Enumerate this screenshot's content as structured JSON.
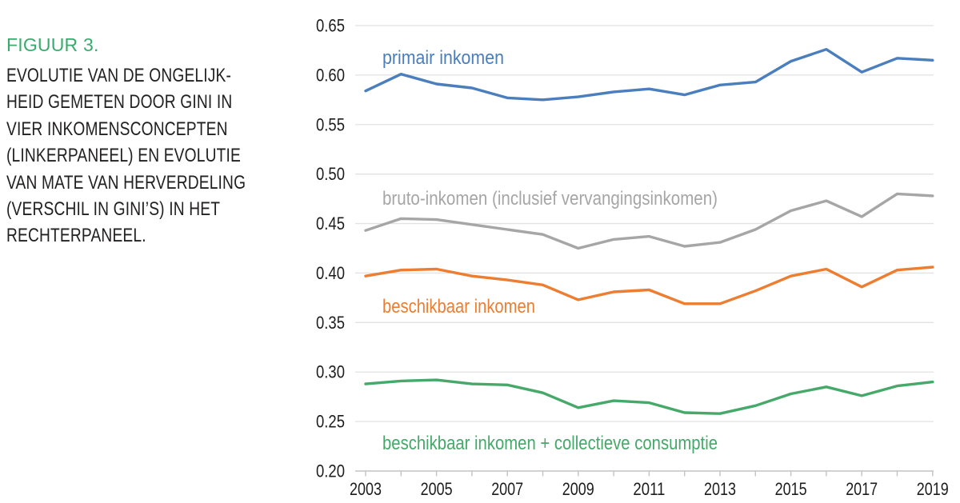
{
  "figure": {
    "label": "FIGUUR 3.",
    "label_color": "#3bab6d",
    "title": "EVOLUTIE VAN DE ONGELIJK-\nHEID GEMETEN DOOR GINI IN\nVIER INKOMENSCONCEPTEN\n(LINKERPANEEL) EN EVOLUTIE\nVAN MATE VAN HERVERDELING\n(VERSCHIL IN GINI’S) IN HET\nRECHTERPANEEL."
  },
  "chart_data": {
    "type": "line",
    "x": [
      2003,
      2004,
      2005,
      2006,
      2007,
      2008,
      2009,
      2010,
      2011,
      2012,
      2013,
      2014,
      2015,
      2016,
      2017,
      2018,
      2019
    ],
    "x_tick_labels": [
      "2003",
      "2005",
      "2007",
      "2009",
      "2011",
      "2013",
      "2015",
      "2017",
      "2019"
    ],
    "ylim": [
      0.2,
      0.65
    ],
    "ytick_step": 0.05,
    "ytick_labels": [
      "0.65",
      "0.60",
      "0.55",
      "0.50",
      "0.45",
      "0.40",
      "0.35",
      "0.30",
      "0.25",
      "0.20"
    ],
    "grid": true,
    "legend_position": "inline-labels",
    "ylabel": "",
    "xlabel": "",
    "series": [
      {
        "name": "primair inkomen",
        "color": "#4a7ebc",
        "values": [
          0.584,
          0.601,
          0.591,
          0.587,
          0.577,
          0.575,
          0.578,
          0.583,
          0.586,
          0.58,
          0.59,
          0.593,
          0.614,
          0.626,
          0.603,
          0.617,
          0.615
        ]
      },
      {
        "name": "bruto-inkomen (inclusief vervangingsinkomen)",
        "color": "#a6a6a6",
        "values": [
          0.443,
          0.455,
          0.454,
          0.449,
          0.444,
          0.439,
          0.425,
          0.434,
          0.437,
          0.427,
          0.431,
          0.444,
          0.463,
          0.473,
          0.457,
          0.48,
          0.478
        ]
      },
      {
        "name": "beschikbaar inkomen",
        "color": "#ec7d31",
        "values": [
          0.397,
          0.403,
          0.404,
          0.397,
          0.393,
          0.388,
          0.373,
          0.381,
          0.383,
          0.369,
          0.369,
          0.382,
          0.397,
          0.404,
          0.386,
          0.403,
          0.406
        ]
      },
      {
        "name": "beschikbaar inkomen + collectieve consumptie",
        "color": "#46a869",
        "values": [
          0.288,
          0.291,
          0.292,
          0.288,
          0.287,
          0.279,
          0.264,
          0.271,
          0.269,
          0.259,
          0.258,
          0.266,
          0.278,
          0.285,
          0.276,
          0.286,
          0.29
        ]
      }
    ]
  }
}
